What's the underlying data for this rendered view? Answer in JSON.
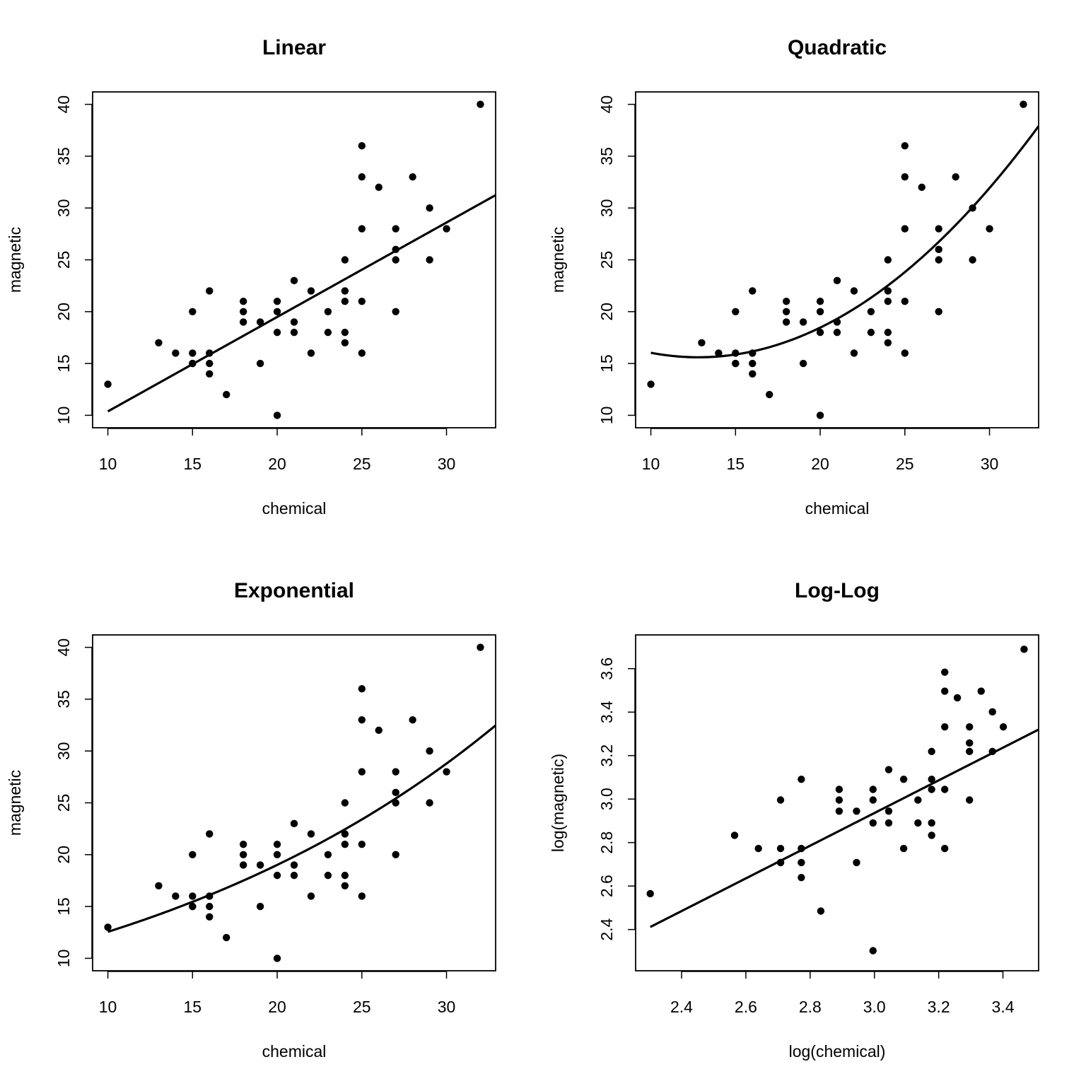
{
  "chart_data": [
    {
      "type": "scatter",
      "title": "Linear",
      "xlabel": "chemical",
      "ylabel": "magnetic",
      "xlim": [
        9.1,
        32.9
      ],
      "ylim": [
        8.8,
        41.2
      ],
      "xticks": [
        10,
        15,
        20,
        25,
        30
      ],
      "yticks": [
        10,
        15,
        20,
        25,
        30,
        35,
        40
      ],
      "xtick_labels": [
        "10",
        "15",
        "20",
        "25",
        "30"
      ],
      "ytick_labels": [
        "10",
        "15",
        "20",
        "25",
        "30",
        "35",
        "40"
      ],
      "fit_model": "linear",
      "fit": {
        "a": 1.2652,
        "b": 0.9112
      },
      "points": [
        [
          10,
          13
        ],
        [
          13,
          17
        ],
        [
          14,
          16
        ],
        [
          15,
          16
        ],
        [
          15,
          15
        ],
        [
          15,
          20
        ],
        [
          15,
          15
        ],
        [
          16,
          16
        ],
        [
          16,
          15
        ],
        [
          16,
          22
        ],
        [
          16,
          14
        ],
        [
          17,
          12
        ],
        [
          18,
          21
        ],
        [
          18,
          20
        ],
        [
          18,
          19
        ],
        [
          19,
          19
        ],
        [
          19,
          15
        ],
        [
          20,
          21
        ],
        [
          20,
          20
        ],
        [
          20,
          18
        ],
        [
          20,
          10
        ],
        [
          21,
          23
        ],
        [
          21,
          19
        ],
        [
          21,
          18
        ],
        [
          22,
          22
        ],
        [
          22,
          16
        ],
        [
          23,
          20
        ],
        [
          23,
          18
        ],
        [
          24,
          25
        ],
        [
          24,
          22
        ],
        [
          24,
          21
        ],
        [
          24,
          18
        ],
        [
          24,
          17
        ],
        [
          25,
          36
        ],
        [
          25,
          33
        ],
        [
          25,
          28
        ],
        [
          25,
          21
        ],
        [
          25,
          16
        ],
        [
          26,
          32
        ],
        [
          27,
          28
        ],
        [
          27,
          26
        ],
        [
          27,
          25
        ],
        [
          27,
          20
        ],
        [
          28,
          33
        ],
        [
          29,
          30
        ],
        [
          29,
          25
        ],
        [
          30,
          28
        ],
        [
          32,
          40
        ]
      ]
    },
    {
      "type": "scatter",
      "title": "Quadratic",
      "xlabel": "chemical",
      "ylabel": "magnetic",
      "xlim": [
        9.1,
        32.9
      ],
      "ylim": [
        8.8,
        41.2
      ],
      "xticks": [
        10,
        15,
        20,
        25,
        30
      ],
      "yticks": [
        10,
        15,
        20,
        25,
        30,
        35,
        40
      ],
      "xtick_labels": [
        "10",
        "15",
        "20",
        "25",
        "30"
      ],
      "ytick_labels": [
        "10",
        "15",
        "20",
        "25",
        "30",
        "35",
        "40"
      ],
      "fit_model": "quadratic",
      "fit": {
        "vertex_x": 12.8,
        "vertex_y": 15.6,
        "k": 0.0552
      },
      "points": [
        [
          10,
          13
        ],
        [
          13,
          17
        ],
        [
          14,
          16
        ],
        [
          15,
          16
        ],
        [
          15,
          15
        ],
        [
          15,
          20
        ],
        [
          15,
          15
        ],
        [
          16,
          16
        ],
        [
          16,
          15
        ],
        [
          16,
          22
        ],
        [
          16,
          14
        ],
        [
          17,
          12
        ],
        [
          18,
          21
        ],
        [
          18,
          20
        ],
        [
          18,
          19
        ],
        [
          19,
          19
        ],
        [
          19,
          15
        ],
        [
          20,
          21
        ],
        [
          20,
          20
        ],
        [
          20,
          18
        ],
        [
          20,
          10
        ],
        [
          21,
          23
        ],
        [
          21,
          19
        ],
        [
          21,
          18
        ],
        [
          22,
          22
        ],
        [
          22,
          16
        ],
        [
          23,
          20
        ],
        [
          23,
          18
        ],
        [
          24,
          25
        ],
        [
          24,
          22
        ],
        [
          24,
          21
        ],
        [
          24,
          18
        ],
        [
          24,
          17
        ],
        [
          25,
          36
        ],
        [
          25,
          33
        ],
        [
          25,
          28
        ],
        [
          25,
          21
        ],
        [
          25,
          16
        ],
        [
          26,
          32
        ],
        [
          27,
          28
        ],
        [
          27,
          26
        ],
        [
          27,
          25
        ],
        [
          27,
          20
        ],
        [
          28,
          33
        ],
        [
          29,
          30
        ],
        [
          29,
          25
        ],
        [
          30,
          28
        ],
        [
          32,
          40
        ]
      ]
    },
    {
      "type": "scatter",
      "title": "Exponential",
      "xlabel": "chemical",
      "ylabel": "magnetic",
      "xlim": [
        9.1,
        32.9
      ],
      "ylim": [
        8.8,
        41.2
      ],
      "xticks": [
        10,
        15,
        20,
        25,
        30
      ],
      "yticks": [
        10,
        15,
        20,
        25,
        30,
        35,
        40
      ],
      "xtick_labels": [
        "10",
        "15",
        "20",
        "25",
        "30"
      ],
      "ytick_labels": [
        "10",
        "15",
        "20",
        "25",
        "30",
        "35",
        "40"
      ],
      "fit_model": "exponential",
      "fit": {
        "A": 8.29,
        "r": 0.0415
      },
      "points": [
        [
          10,
          13
        ],
        [
          13,
          17
        ],
        [
          14,
          16
        ],
        [
          15,
          16
        ],
        [
          15,
          15
        ],
        [
          15,
          20
        ],
        [
          15,
          15
        ],
        [
          16,
          16
        ],
        [
          16,
          15
        ],
        [
          16,
          22
        ],
        [
          16,
          14
        ],
        [
          17,
          12
        ],
        [
          18,
          21
        ],
        [
          18,
          20
        ],
        [
          18,
          19
        ],
        [
          19,
          19
        ],
        [
          19,
          15
        ],
        [
          20,
          21
        ],
        [
          20,
          20
        ],
        [
          20,
          18
        ],
        [
          20,
          10
        ],
        [
          21,
          23
        ],
        [
          21,
          19
        ],
        [
          21,
          18
        ],
        [
          22,
          22
        ],
        [
          22,
          16
        ],
        [
          23,
          20
        ],
        [
          23,
          18
        ],
        [
          24,
          25
        ],
        [
          24,
          22
        ],
        [
          24,
          21
        ],
        [
          24,
          18
        ],
        [
          24,
          17
        ],
        [
          25,
          36
        ],
        [
          25,
          33
        ],
        [
          25,
          28
        ],
        [
          25,
          21
        ],
        [
          25,
          16
        ],
        [
          26,
          32
        ],
        [
          27,
          28
        ],
        [
          27,
          26
        ],
        [
          27,
          25
        ],
        [
          27,
          20
        ],
        [
          28,
          33
        ],
        [
          29,
          30
        ],
        [
          29,
          25
        ],
        [
          30,
          28
        ],
        [
          32,
          40
        ]
      ]
    },
    {
      "type": "scatter",
      "title": "Log-Log",
      "xlabel": "log(chemical)",
      "ylabel": "log(magnetic)",
      "xlim": [
        2.257,
        3.511
      ],
      "ylim": [
        2.2103,
        3.7551
      ],
      "xticks": [
        2.4,
        2.6,
        2.8,
        3.0,
        3.2,
        3.4
      ],
      "yticks": [
        2.4,
        2.6,
        2.8,
        3.0,
        3.2,
        3.4,
        3.6
      ],
      "xtick_labels": [
        "2.4",
        "2.6",
        "2.8",
        "3.0",
        "3.2",
        "3.4"
      ],
      "ytick_labels": [
        "2.4",
        "2.6",
        "2.8",
        "3.0",
        "3.2",
        "3.4",
        "3.6"
      ],
      "fit_model": "linear",
      "fit": {
        "a": 0.681,
        "b": 0.7516
      },
      "log_transform": true,
      "points": [
        [
          10,
          13
        ],
        [
          13,
          17
        ],
        [
          14,
          16
        ],
        [
          15,
          16
        ],
        [
          15,
          15
        ],
        [
          15,
          20
        ],
        [
          15,
          15
        ],
        [
          16,
          16
        ],
        [
          16,
          15
        ],
        [
          16,
          22
        ],
        [
          16,
          14
        ],
        [
          17,
          12
        ],
        [
          18,
          21
        ],
        [
          18,
          20
        ],
        [
          18,
          19
        ],
        [
          19,
          19
        ],
        [
          19,
          15
        ],
        [
          20,
          21
        ],
        [
          20,
          20
        ],
        [
          20,
          18
        ],
        [
          20,
          10
        ],
        [
          21,
          23
        ],
        [
          21,
          19
        ],
        [
          21,
          18
        ],
        [
          22,
          22
        ],
        [
          22,
          16
        ],
        [
          23,
          20
        ],
        [
          23,
          18
        ],
        [
          24,
          25
        ],
        [
          24,
          22
        ],
        [
          24,
          21
        ],
        [
          24,
          18
        ],
        [
          24,
          17
        ],
        [
          25,
          36
        ],
        [
          25,
          33
        ],
        [
          25,
          28
        ],
        [
          25,
          21
        ],
        [
          25,
          16
        ],
        [
          26,
          32
        ],
        [
          27,
          28
        ],
        [
          27,
          26
        ],
        [
          27,
          25
        ],
        [
          27,
          20
        ],
        [
          28,
          33
        ],
        [
          29,
          30
        ],
        [
          29,
          25
        ],
        [
          30,
          28
        ],
        [
          32,
          40
        ]
      ]
    }
  ]
}
